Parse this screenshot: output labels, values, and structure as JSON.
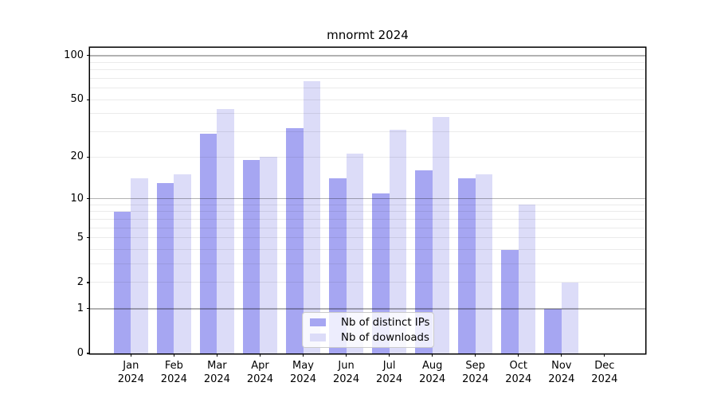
{
  "figure": {
    "background": "#ffffff"
  },
  "chart_data": {
    "type": "bar",
    "title": "mnormt 2024",
    "categories": [
      "Jan",
      "Feb",
      "Mar",
      "Apr",
      "May",
      "Jun",
      "Jul",
      "Aug",
      "Sep",
      "Oct",
      "Nov",
      "Dec"
    ],
    "x_sublabel": "2024",
    "series": [
      {
        "name": "Nb of distinct IPs",
        "color": "#a6a6f2",
        "values": [
          8,
          13,
          29,
          19,
          32,
          14,
          11,
          16,
          14,
          4,
          1,
          0
        ]
      },
      {
        "name": "Nb of downloads",
        "color": "#dcdcf8",
        "values": [
          14,
          15,
          43,
          20,
          67,
          21,
          31,
          38,
          15,
          9,
          2,
          0
        ]
      }
    ],
    "yscale": "log1p",
    "ylim": [
      0,
      113
    ],
    "yticks": [
      0,
      1,
      2,
      5,
      10,
      20,
      50,
      100
    ],
    "ytick_labels": [
      "0",
      "1",
      "2",
      "5",
      "10",
      "20",
      "50",
      "100"
    ],
    "major_gridlines": [
      1,
      10,
      100
    ],
    "minor_gridlines": [
      2,
      3,
      4,
      5,
      6,
      7,
      8,
      9,
      20,
      30,
      40,
      50,
      60,
      70,
      80,
      90
    ],
    "grid": true,
    "legend_position": "lower center",
    "colors": {
      "axis": "#000000",
      "major_grid": "rgba(0,0,0,0.30)",
      "minor_grid": "rgba(0,0,0,0.08)",
      "tick_text": "#000000"
    }
  }
}
